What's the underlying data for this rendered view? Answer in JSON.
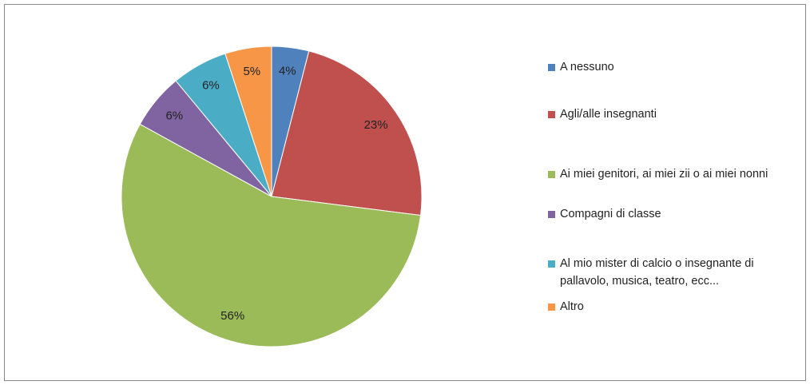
{
  "chart_data": {
    "type": "pie",
    "categories": [
      "A nessuno",
      "Agli/alle insegnanti",
      "Ai miei genitori, ai miei zii o ai miei nonni",
      "Compagni di classe",
      "Al mio mister di calcio o insegnante di pallavolo, musica, teatro, ecc...",
      "Altro"
    ],
    "values": [
      4,
      23,
      56,
      6,
      6,
      5
    ],
    "value_labels": [
      "4%",
      "23%",
      "56%",
      "6%",
      "6%",
      "5%"
    ],
    "colors": [
      "#4f81bd",
      "#c0504d",
      "#9bbb59",
      "#8064a2",
      "#4bacc6",
      "#f79646"
    ],
    "legend": "right"
  }
}
